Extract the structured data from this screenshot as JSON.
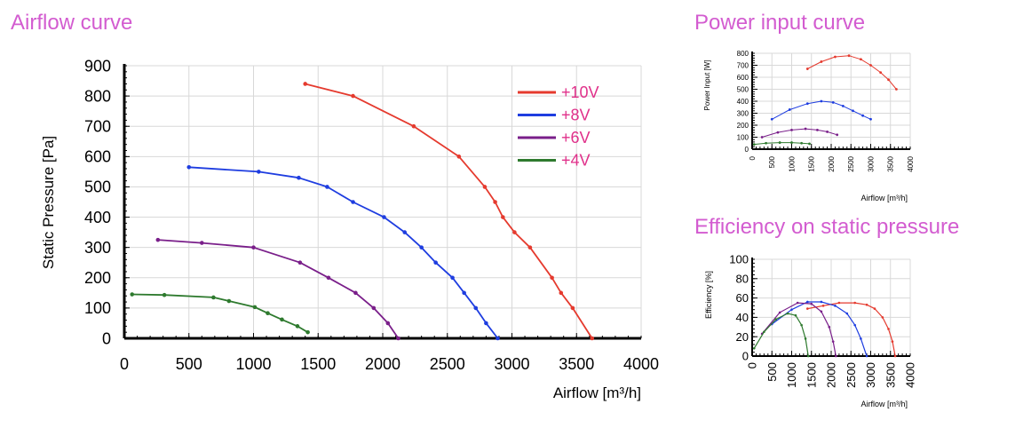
{
  "titles": {
    "airflow": "Airflow curve",
    "power": "Power input curve",
    "efficiency": "Efficiency on static pressure"
  },
  "colors": {
    "title": "#d35cd0",
    "legend_text": "#e0308a",
    "v10": "#e53a2e",
    "v8": "#1e3de0",
    "v6": "#7a1f8a",
    "v4": "#2e7a2e"
  },
  "chart_data": [
    {
      "type": "line",
      "title": "Airflow curve",
      "xlabel": "Airflow [m³/h]",
      "ylabel": "Static Pressure [Pa]",
      "xlim": [
        0,
        4000
      ],
      "ylim": [
        0,
        900
      ],
      "xticks": [
        "0",
        "500",
        "1000",
        "1500",
        "2000",
        "2500",
        "3000",
        "3500",
        "4000"
      ],
      "yticks": [
        "0",
        "100",
        "200",
        "300",
        "400",
        "500",
        "600",
        "700",
        "800",
        "900"
      ],
      "grid": true,
      "legend_position": "top-right",
      "series": [
        {
          "name": "+10V",
          "color": "#e53a2e",
          "x": [
            1400,
            1770,
            2240,
            2590,
            2790,
            2870,
            2930,
            3020,
            3140,
            3310,
            3380,
            3470,
            3620
          ],
          "y": [
            840,
            800,
            700,
            600,
            500,
            450,
            400,
            350,
            300,
            200,
            150,
            100,
            0
          ]
        },
        {
          "name": "+8V",
          "color": "#1e3de0",
          "x": [
            500,
            1040,
            1350,
            1570,
            1770,
            2010,
            2170,
            2300,
            2410,
            2540,
            2630,
            2720,
            2800,
            2890
          ],
          "y": [
            565,
            550,
            530,
            500,
            450,
            400,
            350,
            300,
            250,
            200,
            150,
            100,
            50,
            0
          ]
        },
        {
          "name": "+6V",
          "color": "#7a1f8a",
          "x": [
            260,
            600,
            1000,
            1360,
            1580,
            1790,
            1930,
            2040,
            2120
          ],
          "y": [
            325,
            315,
            300,
            250,
            200,
            150,
            100,
            50,
            0
          ]
        },
        {
          "name": "+4V",
          "color": "#2e7a2e",
          "x": [
            60,
            310,
            690,
            810,
            1010,
            1110,
            1220,
            1340,
            1420
          ],
          "y": [
            145,
            143,
            135,
            123,
            103,
            83,
            62,
            40,
            20
          ]
        }
      ]
    },
    {
      "type": "line",
      "title": "Power input curve",
      "xlabel": "Airflow [m³/h]",
      "ylabel": "Power Input [W]",
      "xlim": [
        0,
        4000
      ],
      "ylim": [
        0,
        800
      ],
      "xticks": [
        "0",
        "500",
        "1000",
        "1500",
        "2000",
        "2500",
        "3000",
        "3500",
        "4000"
      ],
      "yticks": [
        "0",
        "100",
        "200",
        "300",
        "400",
        "500",
        "600",
        "700",
        "800"
      ],
      "grid": true,
      "series": [
        {
          "color": "#e53a2e",
          "x": [
            1400,
            1750,
            2100,
            2450,
            2750,
            3000,
            3250,
            3450,
            3650
          ],
          "y": [
            670,
            730,
            770,
            780,
            750,
            700,
            640,
            580,
            500
          ]
        },
        {
          "color": "#1e3de0",
          "x": [
            500,
            950,
            1400,
            1750,
            2050,
            2300,
            2550,
            2800,
            3000
          ],
          "y": [
            250,
            330,
            380,
            400,
            390,
            360,
            320,
            280,
            250
          ]
        },
        {
          "color": "#7a1f8a",
          "x": [
            250,
            650,
            1000,
            1350,
            1650,
            1900,
            2150
          ],
          "y": [
            100,
            140,
            160,
            170,
            160,
            145,
            120
          ]
        },
        {
          "color": "#2e7a2e",
          "x": [
            50,
            350,
            700,
            1000,
            1250,
            1450
          ],
          "y": [
            40,
            50,
            55,
            55,
            50,
            45
          ]
        }
      ]
    },
    {
      "type": "line",
      "title": "Efficiency on static pressure",
      "xlabel": "Airflow [m³/h]",
      "ylabel": "Efficiency [%]",
      "xlim": [
        0,
        4000
      ],
      "ylim": [
        0,
        100
      ],
      "xticks": [
        "0",
        "500",
        "1000",
        "1500",
        "2000",
        "2500",
        "3000",
        "3500",
        "4000"
      ],
      "yticks": [
        "0",
        "20",
        "40",
        "60",
        "80",
        "100"
      ],
      "grid": true,
      "series": [
        {
          "color": "#e53a2e",
          "x": [
            1400,
            1800,
            2200,
            2600,
            2900,
            3100,
            3300,
            3450,
            3550,
            3620
          ],
          "y": [
            49,
            52,
            55,
            55,
            53,
            49,
            40,
            28,
            15,
            0
          ]
        },
        {
          "color": "#1e3de0",
          "x": [
            500,
            1000,
            1400,
            1750,
            2100,
            2400,
            2600,
            2750,
            2900
          ],
          "y": [
            33,
            48,
            56,
            56,
            52,
            44,
            32,
            18,
            0
          ]
        },
        {
          "color": "#7a1f8a",
          "x": [
            250,
            700,
            1150,
            1500,
            1750,
            1950,
            2050,
            2120
          ],
          "y": [
            23,
            45,
            55,
            54,
            46,
            30,
            15,
            0
          ]
        },
        {
          "color": "#2e7a2e",
          "x": [
            50,
            300,
            600,
            900,
            1100,
            1250,
            1350,
            1420
          ],
          "y": [
            8,
            25,
            38,
            44,
            42,
            32,
            18,
            0
          ]
        }
      ]
    }
  ]
}
